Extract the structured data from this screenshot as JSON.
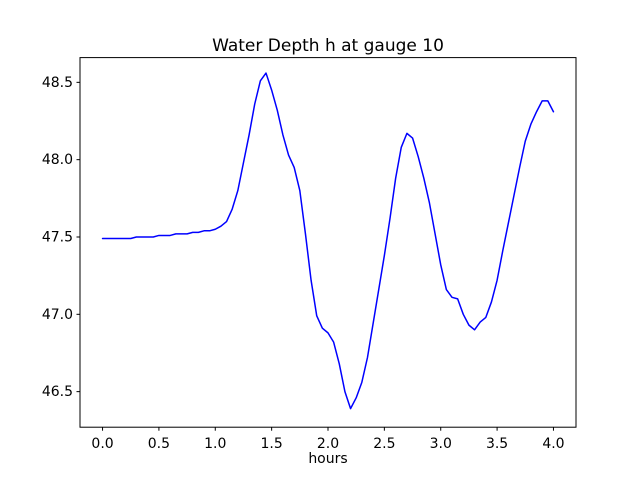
{
  "window": {
    "title": "Water Depth h at gauge 10"
  },
  "chart_data": {
    "type": "line",
    "title": "Water Depth h at gauge 10",
    "xlabel": "hours",
    "ylabel": "",
    "grid": false,
    "legend": null,
    "line_color": "#0000ff",
    "line_width": 1.5,
    "xlim": [
      -0.2,
      4.2
    ],
    "ylim": [
      46.27,
      48.66
    ],
    "xticks": [
      0.0,
      0.5,
      1.0,
      1.5,
      2.0,
      2.5,
      3.0,
      3.5,
      4.0
    ],
    "yticks": [
      46.5,
      47.0,
      47.5,
      48.0,
      48.5
    ],
    "x": [
      0.0,
      0.05,
      0.1,
      0.15,
      0.2,
      0.25,
      0.3,
      0.35,
      0.4,
      0.45,
      0.5,
      0.55,
      0.6,
      0.65,
      0.7,
      0.75,
      0.8,
      0.85,
      0.9,
      0.95,
      1.0,
      1.05,
      1.1,
      1.15,
      1.2,
      1.25,
      1.3,
      1.35,
      1.4,
      1.45,
      1.5,
      1.55,
      1.6,
      1.65,
      1.7,
      1.75,
      1.8,
      1.85,
      1.9,
      1.95,
      2.0,
      2.05,
      2.1,
      2.15,
      2.2,
      2.25,
      2.3,
      2.35,
      2.4,
      2.45,
      2.5,
      2.55,
      2.6,
      2.65,
      2.7,
      2.75,
      2.8,
      2.85,
      2.9,
      2.95,
      3.0,
      3.05,
      3.1,
      3.15,
      3.2,
      3.25,
      3.3,
      3.35,
      3.4,
      3.45,
      3.5,
      3.55,
      3.6,
      3.65,
      3.7,
      3.75,
      3.8,
      3.85,
      3.9,
      3.95,
      4.0
    ],
    "y": [
      47.49,
      47.49,
      47.49,
      47.49,
      47.49,
      47.49,
      47.5,
      47.5,
      47.5,
      47.5,
      47.51,
      47.51,
      47.51,
      47.52,
      47.52,
      47.52,
      47.53,
      47.53,
      47.54,
      47.54,
      47.55,
      47.57,
      47.6,
      47.68,
      47.8,
      47.98,
      48.16,
      48.36,
      48.51,
      48.56,
      48.45,
      48.32,
      48.16,
      48.03,
      47.95,
      47.8,
      47.52,
      47.22,
      46.99,
      46.91,
      46.88,
      46.82,
      46.68,
      46.5,
      46.39,
      46.46,
      46.56,
      46.72,
      46.94,
      47.16,
      47.38,
      47.62,
      47.88,
      48.08,
      48.17,
      48.14,
      48.02,
      47.88,
      47.72,
      47.52,
      47.32,
      47.16,
      47.11,
      47.1,
      47.0,
      46.93,
      46.9,
      46.95,
      46.98,
      47.08,
      47.22,
      47.41,
      47.59,
      47.77,
      47.95,
      48.12,
      48.23,
      48.31,
      48.38,
      48.38,
      48.31
    ]
  }
}
